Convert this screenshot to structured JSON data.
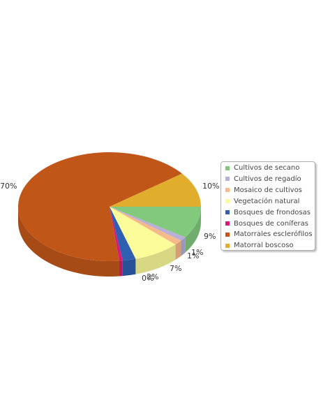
{
  "chart_data": {
    "type": "pie",
    "categories": [
      "Cultivos de secano",
      "Cultivos de regadío",
      "Mosaico de cultivos",
      "Vegetación natural",
      "Bosques de frondosas",
      "Bosques de coníferas",
      "Matorrales esclerófilos",
      "Matorral boscoso"
    ],
    "values": [
      9,
      1,
      1,
      7,
      2,
      0,
      70,
      10
    ],
    "data_labels": [
      "9%",
      "1%",
      "1%",
      "7%",
      "2%",
      "0%",
      "70%",
      "10%"
    ],
    "colors": [
      "#82c97e",
      "#b8aed6",
      "#f6b98a",
      "#fbfb9a",
      "#2f5fb0",
      "#d81a77",
      "#c15619",
      "#e0ae2c"
    ],
    "legend_position": "right",
    "style": "3d"
  }
}
